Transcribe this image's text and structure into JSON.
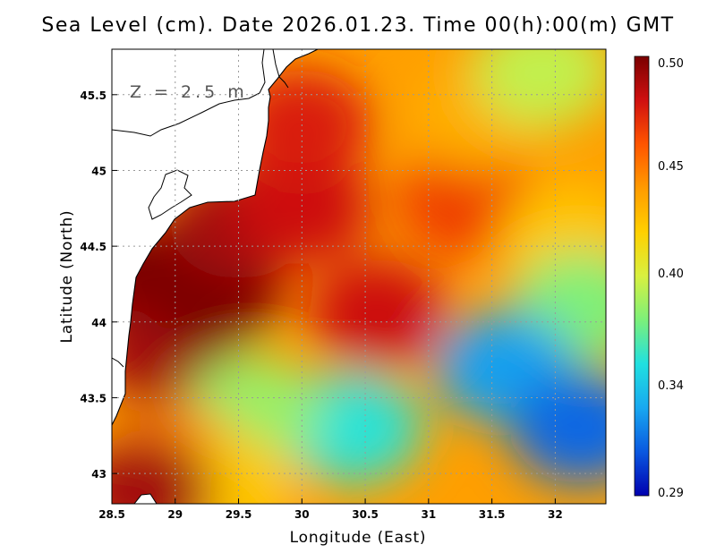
{
  "title": "Sea Level (cm). Date 2026.01.23. Time 00(h):00(m) GMT",
  "depth_label": "Z = 2.5 m",
  "colorbar": {
    "labels": [
      "0.50",
      "0.45",
      "0.40",
      "0.34",
      "0.29"
    ],
    "colors": [
      "#7a0000",
      "#d01010",
      "#ff5500",
      "#ff9b00",
      "#ffd000",
      "#d8f040",
      "#7cf07a",
      "#20e0e0",
      "#18a8f0",
      "#0a58e0",
      "#0000b0"
    ]
  },
  "chart_data": {
    "type": "heatmap",
    "variable": "Sea Level",
    "units": "cm",
    "date": "2026.01.23",
    "time": "00(h):00(m) GMT",
    "depth": "Z = 2.5 m",
    "xlabel": "Longitude (East)",
    "ylabel": "Latitude (North)",
    "xlim": [
      28.5,
      32.4
    ],
    "ylim": [
      42.8,
      45.8
    ],
    "xticks": [
      28.5,
      29,
      29.5,
      30,
      30.5,
      31,
      31.5,
      32
    ],
    "xtick_labels": [
      "28.5",
      "29",
      "29.5",
      "30",
      "30.5",
      "31",
      "31.5",
      "32"
    ],
    "yticks": [
      43,
      43.5,
      44,
      44.5,
      45,
      45.5
    ],
    "ytick_labels": [
      "43",
      "43.5",
      "44",
      "44.5",
      "45",
      "45.5"
    ],
    "color_range": [
      0.29,
      0.5
    ],
    "grid": true,
    "field_samples": [
      {
        "lon": 28.7,
        "lat": 44.3,
        "value": 0.5
      },
      {
        "lon": 28.9,
        "lat": 43.8,
        "value": 0.49
      },
      {
        "lon": 29.3,
        "lat": 44.2,
        "value": 0.5
      },
      {
        "lon": 29.5,
        "lat": 44.65,
        "value": 0.49
      },
      {
        "lon": 30.0,
        "lat": 44.75,
        "value": 0.48
      },
      {
        "lon": 30.0,
        "lat": 45.3,
        "value": 0.475
      },
      {
        "lon": 30.6,
        "lat": 44.05,
        "value": 0.48
      },
      {
        "lon": 31.3,
        "lat": 44.8,
        "value": 0.465
      },
      {
        "lon": 31.4,
        "lat": 45.35,
        "value": 0.43
      },
      {
        "lon": 31.9,
        "lat": 45.65,
        "value": 0.39
      },
      {
        "lon": 32.1,
        "lat": 44.55,
        "value": 0.42
      },
      {
        "lon": 32.2,
        "lat": 44.1,
        "value": 0.375
      },
      {
        "lon": 31.6,
        "lat": 43.7,
        "value": 0.33
      },
      {
        "lon": 32.2,
        "lat": 43.3,
        "value": 0.315
      },
      {
        "lon": 30.4,
        "lat": 43.3,
        "value": 0.355
      },
      {
        "lon": 29.6,
        "lat": 43.4,
        "value": 0.38
      },
      {
        "lon": 29.0,
        "lat": 43.1,
        "value": 0.445
      },
      {
        "lon": 29.4,
        "lat": 42.9,
        "value": 0.42
      },
      {
        "lon": 28.75,
        "lat": 42.88,
        "value": 0.49
      }
    ]
  }
}
